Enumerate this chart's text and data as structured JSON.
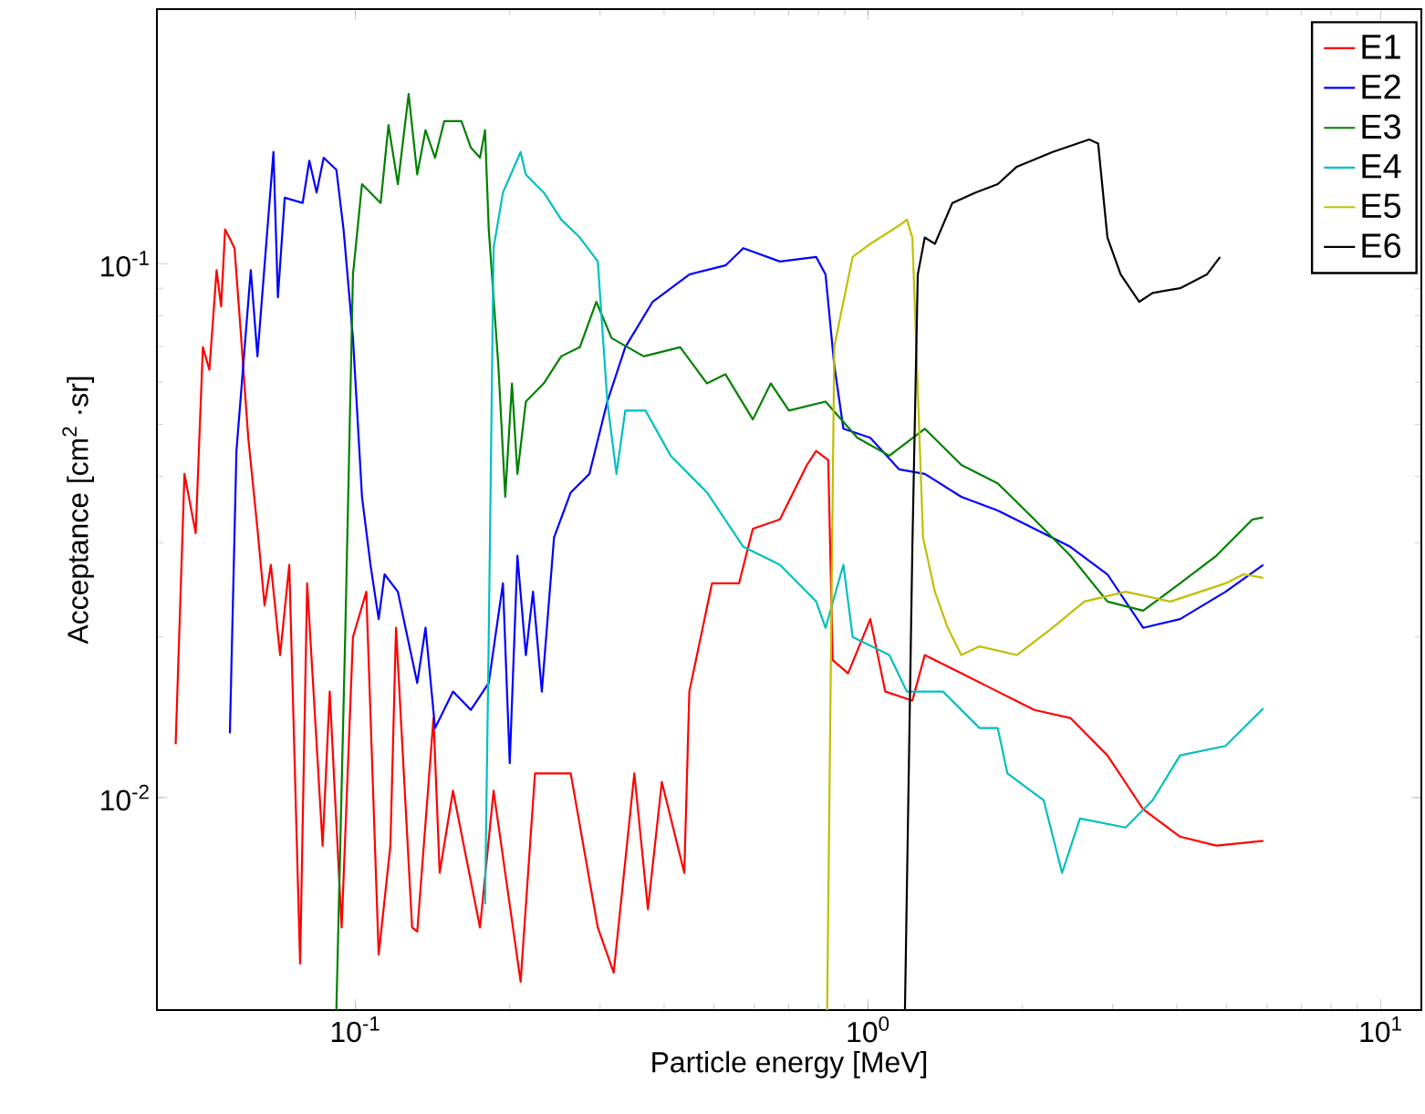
{
  "chart_data": {
    "type": "line",
    "xlabel": "Particle energy [MeV]",
    "ylabel": "Acceptance [cm$^{2}$ ·sr]",
    "log": "xy",
    "grid": false,
    "legend": "top right",
    "marker": "none",
    "line_style": "solid",
    "xlim": [
      0.041,
      12
    ],
    "ylim": [
      0.004,
      0.3
    ],
    "xticks": [
      {
        "value": 0.1,
        "label": "10$^{-1}$"
      },
      {
        "value": 1,
        "label": "10$^{0}$"
      },
      {
        "value": 10,
        "label": "10$^{1}$"
      }
    ],
    "yticks": [
      {
        "value": 0.01,
        "label": "10$^{-2}$"
      },
      {
        "value": 0.1,
        "label": "10$^{-1}$"
      }
    ],
    "series": [
      {
        "name": "E1",
        "color": "#ff0000",
        "x": [
          0.0446,
          0.0464,
          0.0488,
          0.0504,
          0.0519,
          0.0536,
          0.0547,
          0.0557,
          0.0581,
          0.0596,
          0.0618,
          0.0644,
          0.0665,
          0.0684,
          0.0713,
          0.0743,
          0.078,
          0.0805,
          0.0863,
          0.0891,
          0.094,
          0.0989,
          0.105,
          0.111,
          0.117,
          0.12,
          0.129,
          0.132,
          0.142,
          0.146,
          0.155,
          0.175,
          0.186,
          0.21,
          0.224,
          0.263,
          0.297,
          0.319,
          0.35,
          0.372,
          0.396,
          0.438,
          0.448,
          0.496,
          0.56,
          0.596,
          0.673,
          0.76,
          0.792,
          0.836,
          0.853,
          0.914,
          1.01,
          1.08,
          1.22,
          1.29,
          1.52,
          1.79,
          2.11,
          2.48,
          2.93,
          3.44,
          4.06,
          4.78,
          5.9
        ],
        "values": [
          0.0126,
          0.0404,
          0.0313,
          0.0698,
          0.0633,
          0.0973,
          0.0832,
          0.116,
          0.107,
          0.0769,
          0.0472,
          0.0319,
          0.0229,
          0.0273,
          0.0185,
          0.0273,
          0.00489,
          0.0252,
          0.00813,
          0.0158,
          0.00571,
          0.02,
          0.0243,
          0.00508,
          0.00813,
          0.0208,
          0.00571,
          0.00561,
          0.0141,
          0.00723,
          0.0103,
          0.00571,
          0.0103,
          0.00452,
          0.0111,
          0.0111,
          0.00571,
          0.0047,
          0.0111,
          0.00618,
          0.0107,
          0.00723,
          0.0158,
          0.0252,
          0.0252,
          0.0319,
          0.0332,
          0.042,
          0.0446,
          0.0429,
          0.0181,
          0.0171,
          0.0216,
          0.0158,
          0.0152,
          0.0185,
          0.0171,
          0.0158,
          0.0146,
          0.0141,
          0.012,
          0.00951,
          0.00845,
          0.00813,
          0.0083
        ]
      },
      {
        "name": "E2",
        "color": "#0000ff",
        "x": [
          0.0569,
          0.0586,
          0.0625,
          0.0644,
          0.0692,
          0.0706,
          0.0728,
          0.0789,
          0.0813,
          0.084,
          0.0867,
          0.0918,
          0.0948,
          0.0989,
          0.103,
          0.107,
          0.111,
          0.114,
          0.121,
          0.132,
          0.137,
          0.143,
          0.155,
          0.168,
          0.182,
          0.194,
          0.2,
          0.207,
          0.215,
          0.222,
          0.231,
          0.244,
          0.263,
          0.286,
          0.31,
          0.336,
          0.38,
          0.448,
          0.527,
          0.571,
          0.673,
          0.792,
          0.826,
          0.859,
          0.895,
          1.01,
          1.15,
          1.29,
          1.52,
          1.79,
          2.11,
          2.48,
          2.93,
          3.44,
          4.06,
          4.98,
          5.9
        ],
        "values": [
          0.0132,
          0.0446,
          0.0973,
          0.0671,
          0.162,
          0.0865,
          0.133,
          0.13,
          0.156,
          0.136,
          0.158,
          0.15,
          0.116,
          0.0726,
          0.0366,
          0.0273,
          0.0216,
          0.0262,
          0.0243,
          0.0164,
          0.0208,
          0.0135,
          0.0158,
          0.0146,
          0.0164,
          0.0252,
          0.0116,
          0.0284,
          0.0185,
          0.0243,
          0.0158,
          0.0307,
          0.0373,
          0.0404,
          0.0552,
          0.0698,
          0.0849,
          0.0955,
          0.0993,
          0.107,
          0.101,
          0.103,
          0.0955,
          0.0646,
          0.0491,
          0.0472,
          0.0412,
          0.0404,
          0.0366,
          0.0345,
          0.0319,
          0.0295,
          0.0262,
          0.0208,
          0.0216,
          0.0243,
          0.0273
        ]
      },
      {
        "name": "E3",
        "color": "#008000",
        "x": [
          0.0918,
          0.0955,
          0.0989,
          0.103,
          0.112,
          0.116,
          0.121,
          0.127,
          0.132,
          0.137,
          0.143,
          0.149,
          0.161,
          0.168,
          0.175,
          0.179,
          0.182,
          0.19,
          0.196,
          0.202,
          0.207,
          0.215,
          0.233,
          0.252,
          0.274,
          0.295,
          0.316,
          0.365,
          0.43,
          0.485,
          0.527,
          0.596,
          0.646,
          0.701,
          0.826,
          0.953,
          1.1,
          1.29,
          1.52,
          1.79,
          2.11,
          2.48,
          2.93,
          3.44,
          4.06,
          4.78,
          5.62,
          5.9
        ],
        "values": [
          0.004,
          0.02,
          0.0955,
          0.141,
          0.13,
          0.182,
          0.141,
          0.208,
          0.147,
          0.178,
          0.158,
          0.185,
          0.185,
          0.165,
          0.158,
          0.178,
          0.116,
          0.0646,
          0.0366,
          0.0597,
          0.0404,
          0.0552,
          0.0597,
          0.0671,
          0.0698,
          0.0849,
          0.0726,
          0.0671,
          0.0698,
          0.0597,
          0.0621,
          0.0511,
          0.0597,
          0.0531,
          0.0552,
          0.0472,
          0.0437,
          0.0491,
          0.042,
          0.0388,
          0.0332,
          0.0284,
          0.0233,
          0.0224,
          0.0252,
          0.0284,
          0.0332,
          0.0335
        ]
      },
      {
        "name": "E4",
        "color": "#00bfbf",
        "x": [
          0.179,
          0.182,
          0.186,
          0.194,
          0.21,
          0.215,
          0.233,
          0.252,
          0.274,
          0.297,
          0.31,
          0.323,
          0.336,
          0.368,
          0.412,
          0.485,
          0.571,
          0.673,
          0.792,
          0.826,
          0.895,
          0.933,
          1.1,
          1.19,
          1.4,
          1.65,
          1.79,
          1.87,
          2.2,
          2.39,
          2.59,
          3.18,
          3.59,
          4.06,
          4.98,
          5.9
        ],
        "values": [
          0.00631,
          0.02,
          0.107,
          0.136,
          0.162,
          0.147,
          0.136,
          0.121,
          0.112,
          0.101,
          0.0552,
          0.0404,
          0.0531,
          0.0531,
          0.0437,
          0.0373,
          0.0295,
          0.0273,
          0.0233,
          0.0208,
          0.0273,
          0.02,
          0.0185,
          0.0158,
          0.0158,
          0.0135,
          0.0135,
          0.0111,
          0.00989,
          0.00723,
          0.00914,
          0.00879,
          0.00989,
          0.012,
          0.0125,
          0.0147
        ]
      },
      {
        "name": "E5",
        "color": "#bfbf00",
        "x": [
          0.832,
          0.859,
          0.895,
          0.933,
          1.01,
          1.15,
          1.19,
          1.22,
          1.28,
          1.35,
          1.43,
          1.52,
          1.65,
          1.95,
          2.29,
          2.64,
          3.18,
          3.89,
          4.98,
          5.4,
          5.9
        ],
        "values": [
          0.004,
          0.0698,
          0.0849,
          0.103,
          0.109,
          0.118,
          0.121,
          0.112,
          0.0307,
          0.0243,
          0.0208,
          0.0185,
          0.0192,
          0.0185,
          0.0208,
          0.0233,
          0.0243,
          0.0233,
          0.0252,
          0.0262,
          0.0258
        ]
      },
      {
        "name": "E6",
        "color": "#000000",
        "x": [
          1.18,
          1.22,
          1.25,
          1.29,
          1.35,
          1.46,
          1.62,
          1.79,
          1.95,
          2.29,
          2.7,
          2.81,
          2.93,
          3.11,
          3.38,
          3.59,
          4.06,
          4.58,
          4.86
        ],
        "values": [
          0.004,
          0.0295,
          0.0955,
          0.112,
          0.109,
          0.13,
          0.136,
          0.141,
          0.152,
          0.162,
          0.171,
          0.168,
          0.112,
          0.0955,
          0.0849,
          0.0882,
          0.09,
          0.0955,
          0.103
        ]
      }
    ]
  }
}
